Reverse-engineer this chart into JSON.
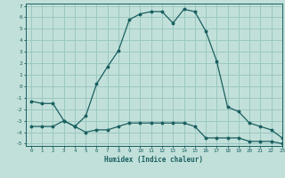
{
  "title": "",
  "xlabel": "Humidex (Indice chaleur)",
  "background_color": "#c2e0da",
  "grid_color": "#9ac8c0",
  "line_color": "#1a6060",
  "xlim": [
    -0.5,
    23
  ],
  "ylim": [
    -5.2,
    7.2
  ],
  "xticks": [
    0,
    1,
    2,
    3,
    4,
    5,
    6,
    7,
    8,
    9,
    10,
    11,
    12,
    13,
    14,
    15,
    16,
    17,
    18,
    19,
    20,
    21,
    22,
    23
  ],
  "yticks": [
    -5,
    -4,
    -3,
    -2,
    -1,
    0,
    1,
    2,
    3,
    4,
    5,
    6,
    7
  ],
  "series1_x": [
    0,
    1,
    2,
    3,
    4,
    5,
    6,
    7,
    8,
    9,
    10,
    11,
    12,
    13,
    14,
    15,
    16,
    17,
    18,
    19,
    20,
    21,
    22,
    23
  ],
  "series1_y": [
    -1.3,
    -1.5,
    -1.5,
    -3.0,
    -3.5,
    -2.6,
    0.2,
    1.7,
    3.1,
    5.8,
    6.3,
    6.5,
    6.5,
    5.5,
    6.7,
    6.5,
    4.8,
    2.2,
    -1.8,
    -2.2,
    -3.2,
    -3.5,
    -3.8,
    -4.5
  ],
  "series2_x": [
    0,
    1,
    2,
    3,
    4,
    5,
    6,
    7,
    8,
    9,
    10,
    11,
    12,
    13,
    14,
    15,
    16,
    17,
    18,
    19,
    20,
    21,
    22,
    23
  ],
  "series2_y": [
    -3.5,
    -3.5,
    -3.5,
    -3.0,
    -3.5,
    -4.0,
    -3.8,
    -3.8,
    -3.5,
    -3.2,
    -3.2,
    -3.2,
    -3.2,
    -3.2,
    -3.2,
    -3.5,
    -4.5,
    -4.5,
    -4.5,
    -4.5,
    -4.8,
    -4.8,
    -4.8,
    -5.0
  ]
}
